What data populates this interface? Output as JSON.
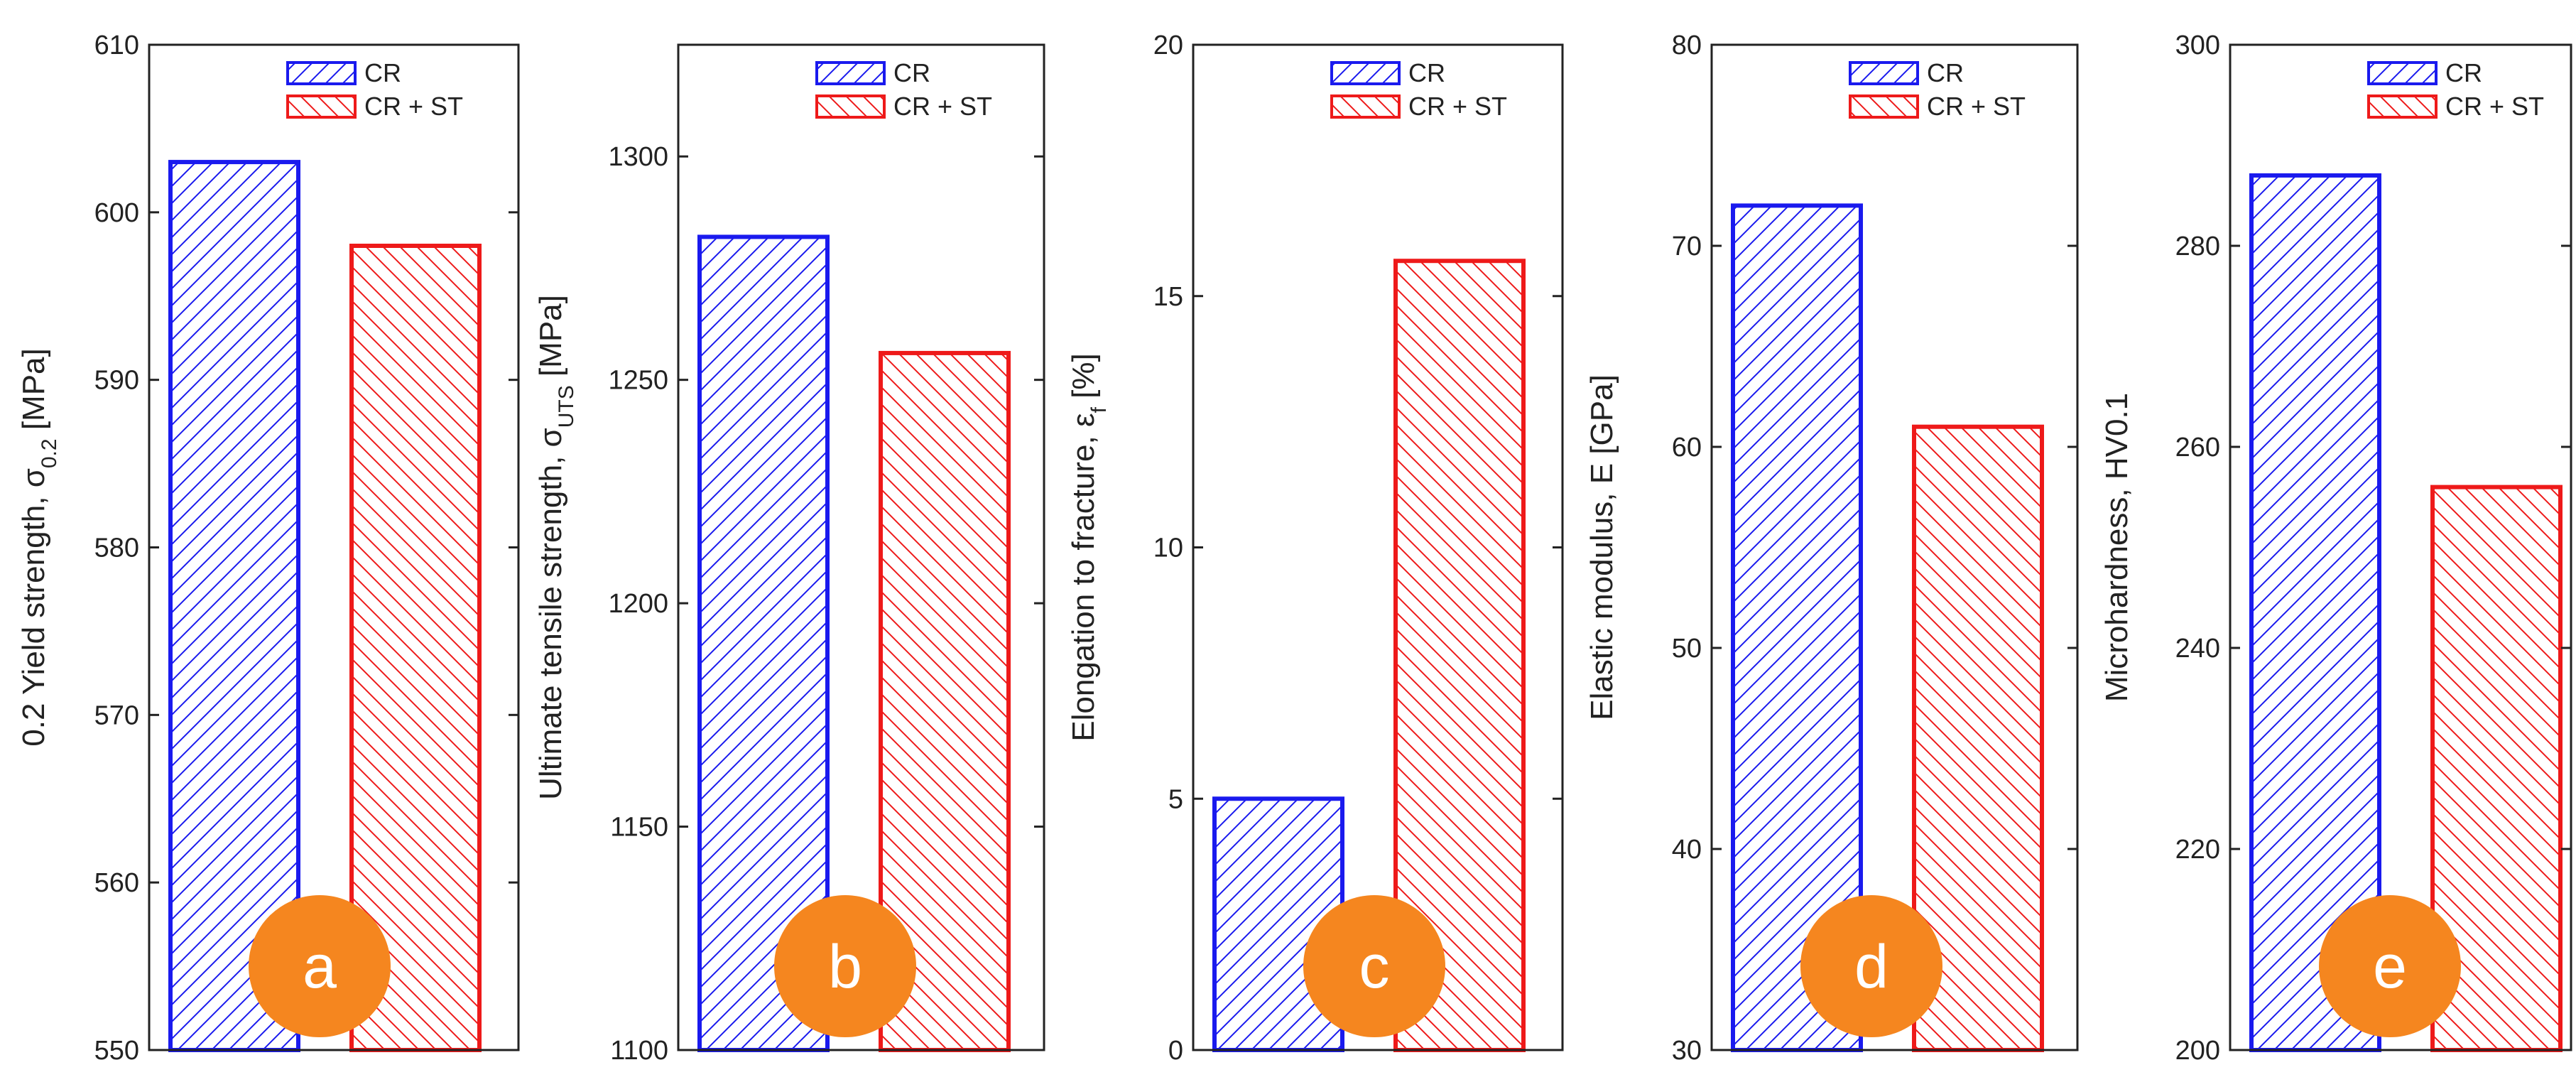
{
  "legend": [
    "CR",
    "CR + ST"
  ],
  "colors": {
    "CR": "#1a1aee",
    "CR + ST": "#ee1a1a",
    "badge": "#f5861f",
    "axis": "#222222"
  },
  "chart_data": [
    {
      "type": "bar",
      "badge": "a",
      "ylabel": {
        "main": "0.2 Yield strength, σ",
        "sub": "0.2",
        "unit": " [MPa]"
      },
      "ylim": [
        550,
        610
      ],
      "ticks": [
        550,
        560,
        570,
        580,
        590,
        600,
        610
      ],
      "categories": [
        "CR",
        "CR + ST"
      ],
      "values": [
        603,
        598
      ]
    },
    {
      "type": "bar",
      "badge": "b",
      "ylabel": {
        "main": "Ultimate tensile strength, σ",
        "sub": "UTS",
        "unit": " [MPa]"
      },
      "ylim": [
        1100,
        1325
      ],
      "ticks": [
        1100,
        1150,
        1200,
        1250,
        1300
      ],
      "categories": [
        "CR",
        "CR + ST"
      ],
      "values": [
        1282,
        1256
      ]
    },
    {
      "type": "bar",
      "badge": "c",
      "ylabel": {
        "main": "Elongation to fracture, ε",
        "sub": "f",
        "unit": " [%]"
      },
      "ylim": [
        0,
        20
      ],
      "ticks": [
        0,
        5,
        10,
        15,
        20
      ],
      "categories": [
        "CR",
        "CR + ST"
      ],
      "values": [
        5.0,
        15.7
      ]
    },
    {
      "type": "bar",
      "badge": "d",
      "ylabel": {
        "main": "Elastic modulus, E [GPa]",
        "sub": "",
        "unit": ""
      },
      "ylim": [
        30,
        80
      ],
      "ticks": [
        30,
        40,
        50,
        60,
        70,
        80
      ],
      "categories": [
        "CR",
        "CR + ST"
      ],
      "values": [
        72,
        61
      ]
    },
    {
      "type": "bar",
      "badge": "e",
      "ylabel": {
        "main": "Microhardness, HV0.1",
        "sub": "",
        "unit": ""
      },
      "ylim": [
        200,
        300
      ],
      "ticks": [
        200,
        220,
        240,
        260,
        280,
        300
      ],
      "categories": [
        "CR",
        "CR + ST"
      ],
      "values": [
        287,
        256
      ]
    }
  ]
}
